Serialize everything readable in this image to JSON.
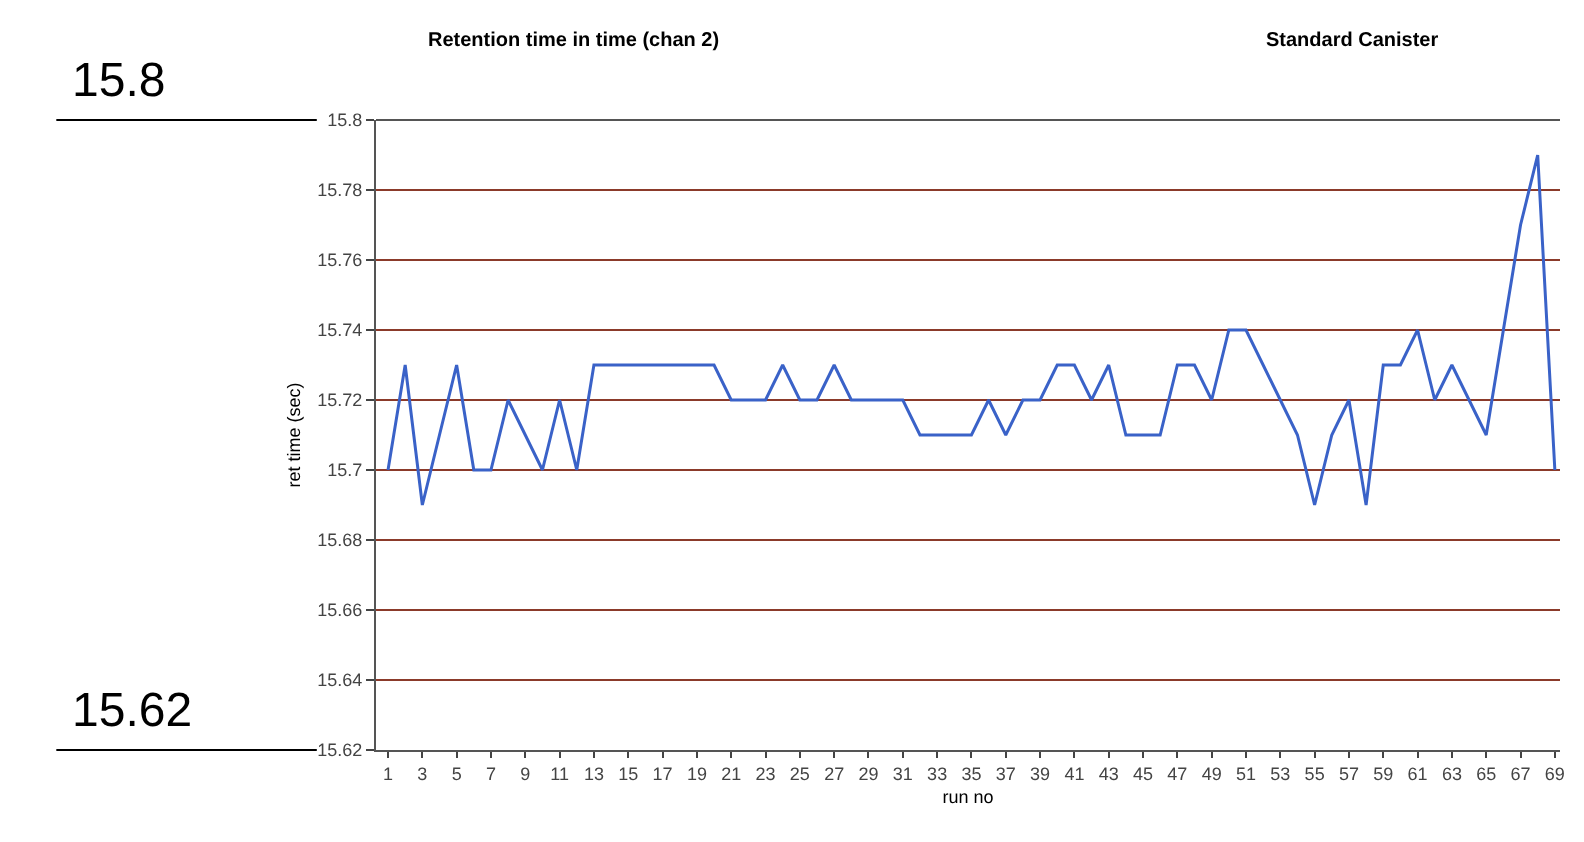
{
  "chart_data": {
    "type": "line",
    "title": "Retention time in time (chan 2)",
    "subtitle": "Standard Canister",
    "xlabel": "run no",
    "ylabel": "ret time (sec)",
    "x": [
      1,
      2,
      3,
      4,
      5,
      6,
      7,
      8,
      9,
      10,
      11,
      12,
      13,
      14,
      15,
      16,
      17,
      18,
      19,
      20,
      21,
      22,
      23,
      24,
      25,
      26,
      27,
      28,
      29,
      30,
      31,
      32,
      33,
      34,
      35,
      36,
      37,
      38,
      39,
      40,
      41,
      42,
      43,
      44,
      45,
      46,
      47,
      48,
      49,
      50,
      51,
      52,
      53,
      54,
      55,
      56,
      57,
      58,
      59,
      60,
      61,
      62,
      63,
      64,
      65,
      66,
      67,
      68,
      69
    ],
    "series": [
      {
        "color": "#3a62c8",
        "values": [
          15.7,
          15.73,
          15.69,
          15.71,
          15.73,
          15.7,
          15.7,
          15.72,
          15.71,
          15.7,
          15.72,
          15.7,
          15.73,
          15.73,
          15.73,
          15.73,
          15.73,
          15.73,
          15.73,
          15.73,
          15.72,
          15.72,
          15.72,
          15.73,
          15.72,
          15.72,
          15.73,
          15.72,
          15.72,
          15.72,
          15.72,
          15.71,
          15.71,
          15.71,
          15.71,
          15.72,
          15.71,
          15.72,
          15.72,
          15.73,
          15.73,
          15.72,
          15.73,
          15.71,
          15.71,
          15.71,
          15.73,
          15.73,
          15.72,
          15.74,
          15.74,
          15.73,
          15.72,
          15.71,
          15.69,
          15.71,
          15.72,
          15.69,
          15.73,
          15.73,
          15.74,
          15.72,
          15.73,
          15.72,
          15.71,
          15.74,
          15.77,
          15.79,
          15.7
        ]
      }
    ],
    "xlim": [
      0.3,
      69.3
    ],
    "xticks": [
      1,
      3,
      5,
      7,
      9,
      11,
      13,
      15,
      17,
      19,
      21,
      23,
      25,
      27,
      29,
      31,
      33,
      35,
      37,
      39,
      41,
      43,
      45,
      47,
      49,
      51,
      53,
      55,
      57,
      59,
      61,
      63,
      65,
      67,
      69
    ],
    "ylim": [
      15.62,
      15.8
    ],
    "yticks": [
      15.62,
      15.64,
      15.66,
      15.68,
      15.7,
      15.72,
      15.74,
      15.76,
      15.78,
      15.8
    ],
    "grid": "y",
    "marker": "none",
    "line_style": "solid",
    "legend": false,
    "annotations": [
      "15.8",
      "15.62"
    ]
  }
}
